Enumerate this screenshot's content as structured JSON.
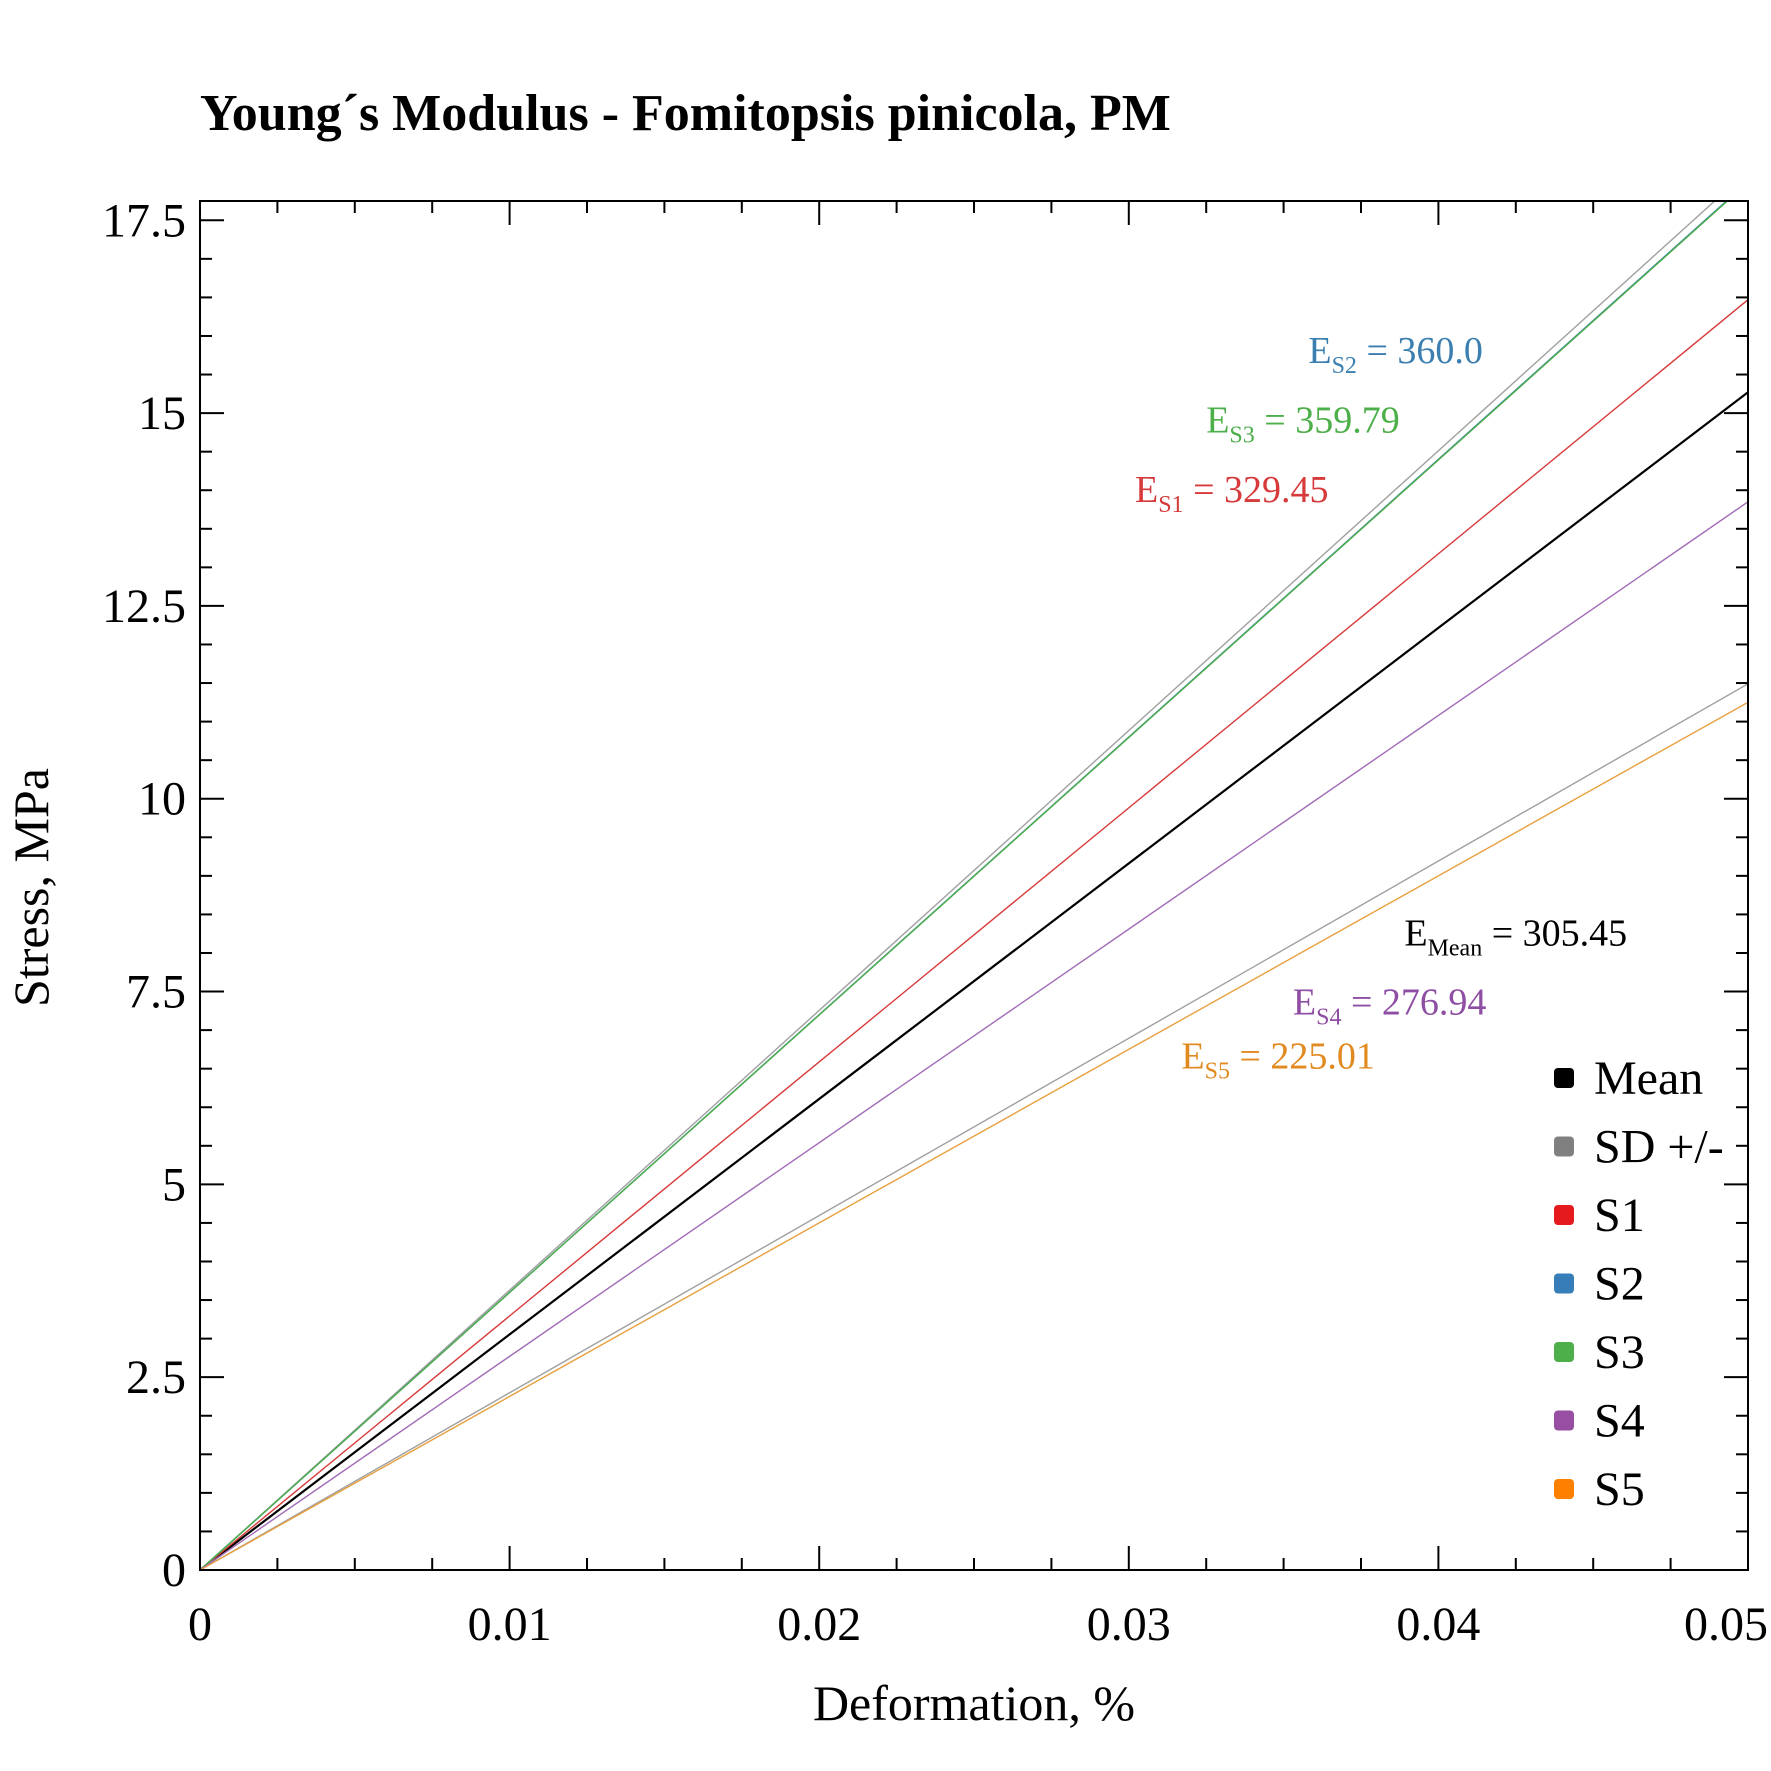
{
  "chart_data": {
    "type": "line",
    "title": "Young´s Modulus - Fomitopsis pinicola, PM",
    "xlabel": "Deformation, %",
    "ylabel": "Stress, MPa",
    "xlim": [
      0,
      0.05
    ],
    "ylim": [
      0,
      17.75
    ],
    "x_ticks": [
      0,
      0.01,
      0.02,
      0.03,
      0.04,
      0.05
    ],
    "x_tick_labels": [
      "0",
      "0.01",
      "0.02",
      "0.03",
      "0.04",
      "0.05"
    ],
    "y_ticks": [
      0,
      2.5,
      5,
      7.5,
      10,
      12.5,
      15,
      17.5
    ],
    "y_tick_labels": [
      "0",
      "2.5",
      "5",
      "7.5",
      "10",
      "12.5",
      "15",
      "17.5"
    ],
    "legend_position": "bottom-right",
    "series": [
      {
        "name": "SD +/-",
        "color": "#a0a0a0",
        "legend_color": "#808080",
        "modulus": 362.7,
        "x": [
          0,
          0.05
        ],
        "y": [
          0,
          18.14
        ]
      },
      {
        "name": "SD +/-",
        "color": "#a0a0a0",
        "legend_color": "#808080",
        "modulus": 229.8,
        "x": [
          0,
          0.05
        ],
        "y": [
          0,
          11.49
        ],
        "legend": false
      },
      {
        "name": "Mean",
        "color": "#000000",
        "legend_color": "#000000",
        "modulus": 305.45,
        "x": [
          0,
          0.05
        ],
        "y": [
          0,
          15.27
        ]
      },
      {
        "name": "S1",
        "color": "#d73a3a",
        "legend_color": "#e41a1c",
        "modulus": 329.45,
        "x": [
          0,
          0.05
        ],
        "y": [
          0,
          16.47
        ]
      },
      {
        "name": "S2",
        "color": "#3a7fb0",
        "legend_color": "#377eb8",
        "modulus": 360.0,
        "x": [
          0,
          0.05
        ],
        "y": [
          0,
          18.0
        ]
      },
      {
        "name": "S3",
        "color": "#4daf4a",
        "legend_color": "#4daf4a",
        "modulus": 359.79,
        "x": [
          0,
          0.05
        ],
        "y": [
          0,
          17.99
        ]
      },
      {
        "name": "S4",
        "color": "#a06ab4",
        "legend_color": "#984ea3",
        "modulus": 276.94,
        "x": [
          0,
          0.05
        ],
        "y": [
          0,
          13.85
        ]
      },
      {
        "name": "S5",
        "color": "#e8a040",
        "legend_color": "#ff7f00",
        "modulus": 225.01,
        "x": [
          0,
          0.05
        ],
        "y": [
          0,
          11.25
        ]
      }
    ],
    "legend": [
      "Mean",
      "SD +/-",
      "S1",
      "S2",
      "S3",
      "S4",
      "S5"
    ],
    "annotations": [
      {
        "main": "E",
        "sub": "S2",
        "text": " = 360.0",
        "color": "#3a7fb0",
        "x": 0.0358,
        "y": 15.65
      },
      {
        "main": "E",
        "sub": "S3",
        "text": " = 359.79",
        "color": "#4daf4a",
        "x": 0.0325,
        "y": 14.75
      },
      {
        "main": "E",
        "sub": "S1",
        "text": " = 329.45",
        "color": "#d73a3a",
        "x": 0.0302,
        "y": 13.85
      },
      {
        "main": "E",
        "sub": "Mean",
        "text": " = 305.45",
        "color": "#000000",
        "x": 0.0389,
        "y": 8.1
      },
      {
        "main": "E",
        "sub": "S4",
        "text": " = 276.94",
        "color": "#8e4ea3",
        "x": 0.0353,
        "y": 7.2
      },
      {
        "main": "E",
        "sub": "S5",
        "text": " = 225.01",
        "color": "#e08a20",
        "x": 0.0317,
        "y": 6.5
      }
    ]
  }
}
